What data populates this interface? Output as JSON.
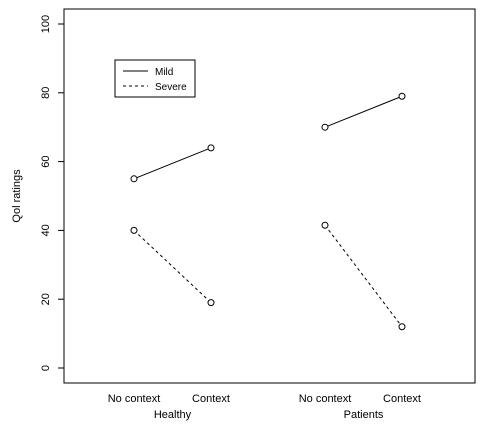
{
  "chart_data": {
    "type": "line",
    "ylabel": "Qol ratings",
    "ylim": [
      0,
      100
    ],
    "yticks": [
      0,
      20,
      40,
      60,
      80,
      100
    ],
    "groups": [
      {
        "name": "Healthy",
        "categories": [
          "No context",
          "Context"
        ]
      },
      {
        "name": "Patients",
        "categories": [
          "No context",
          "Context"
        ]
      }
    ],
    "series": [
      {
        "name": "Mild",
        "style": "solid",
        "values": [
          [
            55,
            64
          ],
          [
            70,
            79
          ]
        ]
      },
      {
        "name": "Severe",
        "style": "dashed",
        "values": [
          [
            40,
            19
          ],
          [
            41.5,
            12
          ]
        ]
      }
    ],
    "legend_position": "top-left",
    "grid": false
  }
}
